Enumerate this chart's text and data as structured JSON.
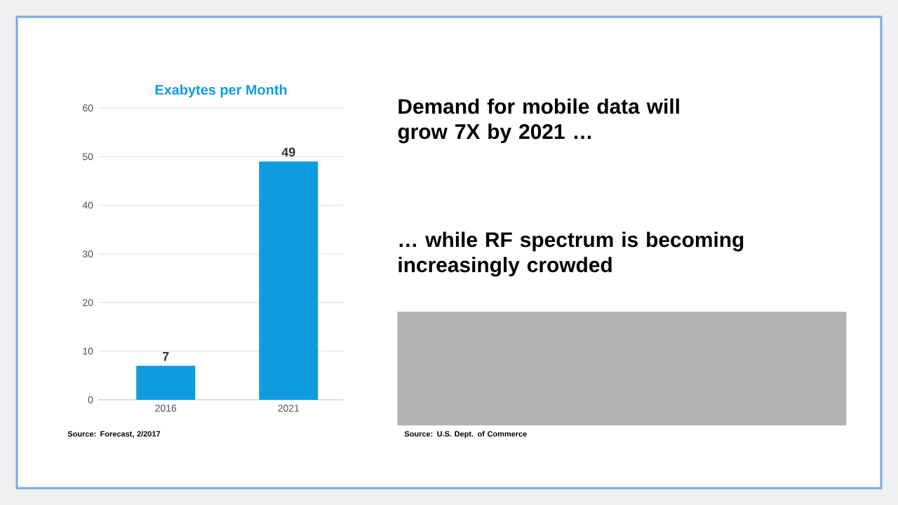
{
  "chart_data": {
    "type": "bar",
    "title": "Exabytes per Month",
    "categories": [
      "2016",
      "2021"
    ],
    "values": [
      7,
      49
    ],
    "color": "#0f9be0",
    "ylim": [
      0,
      60
    ],
    "yticks": [
      0,
      10,
      20,
      30,
      40,
      50,
      60
    ],
    "grid": "y",
    "data_labels": true,
    "annotations": [
      "Demand for mobile data will grow 7X by 2021 …",
      "… while RF spectrum is becoming increasingly crowded",
      "Source: Forecast, 2/2017",
      "Source: U.S. Dept. of Commerce"
    ]
  }
}
